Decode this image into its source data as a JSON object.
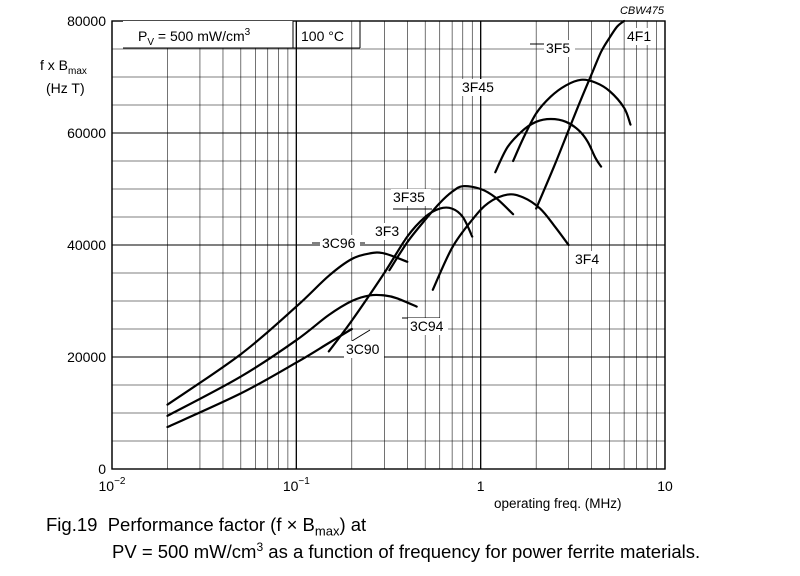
{
  "chart_data": {
    "type": "line",
    "x_scale": "log",
    "figure_id": "CBW475",
    "ylabel": {
      "main": "f x B",
      "sub": "max",
      "unit": "(Hz T)"
    },
    "xlabel": "operating freq. (MHz)",
    "ylim": [
      0,
      80000
    ],
    "xlim": [
      0.01,
      10
    ],
    "y_ticks": [
      0,
      20000,
      40000,
      60000,
      80000
    ],
    "y_tick_labels": [
      "0",
      "20000",
      "40000",
      "60000",
      "80000"
    ],
    "x_tick_labels": [
      {
        "value": 0.01,
        "base": "10",
        "exp": "−2"
      },
      {
        "value": 0.1,
        "base": "10",
        "exp": "−1"
      },
      {
        "value": 1,
        "base": "1",
        "exp": ""
      },
      {
        "value": 10,
        "base": "10",
        "exp": ""
      }
    ],
    "conditions": {
      "power": {
        "prefix": "P",
        "sub": "V",
        "text": " = 500 mW/cm",
        "sup": "3"
      },
      "temperature": "100 °C"
    },
    "grid": true,
    "series": [
      {
        "name": "3C90",
        "x": [
          0.02,
          0.05,
          0.1,
          0.15,
          0.2
        ],
        "y": [
          7500,
          13500,
          19000,
          22500,
          25000
        ]
      },
      {
        "name": "3C94",
        "x": [
          0.02,
          0.05,
          0.1,
          0.15,
          0.2,
          0.25,
          0.3,
          0.35,
          0.45
        ],
        "y": [
          9500,
          16500,
          23000,
          27500,
          30000,
          31000,
          31000,
          30500,
          29000
        ]
      },
      {
        "name": "3C96",
        "x": [
          0.02,
          0.05,
          0.1,
          0.15,
          0.2,
          0.25,
          0.3,
          0.4
        ],
        "y": [
          11500,
          20500,
          29000,
          34500,
          37500,
          38500,
          38500,
          37000
        ]
      },
      {
        "name": "3F3",
        "x": [
          0.15,
          0.2,
          0.3,
          0.4,
          0.5,
          0.6,
          0.7,
          0.8,
          0.9
        ],
        "y": [
          21000,
          26500,
          35000,
          41500,
          45000,
          46500,
          46500,
          45000,
          41500
        ]
      },
      {
        "name": "3F35",
        "x": [
          0.32,
          0.4,
          0.5,
          0.6,
          0.7,
          0.8,
          1.0,
          1.2,
          1.5
        ],
        "y": [
          35500,
          40500,
          44500,
          47500,
          49500,
          50500,
          50000,
          48500,
          45500
        ]
      },
      {
        "name": "3F4",
        "x": [
          0.55,
          0.7,
          0.9,
          1.1,
          1.4,
          1.7,
          2.1,
          2.5,
          3.0
        ],
        "y": [
          32000,
          39500,
          44500,
          47500,
          49000,
          48500,
          46500,
          43500,
          40000
        ]
      },
      {
        "name": "3F45",
        "x": [
          1.2,
          1.4,
          1.7,
          2.0,
          2.4,
          2.9,
          3.4,
          3.8,
          4.2,
          4.5
        ],
        "y": [
          53000,
          57500,
          60500,
          62000,
          62500,
          62000,
          60500,
          58500,
          55500,
          54000
        ]
      },
      {
        "name": "3F5",
        "x": [
          1.5,
          1.7,
          2.0,
          2.4,
          2.9,
          3.5,
          4.2,
          5.0,
          6.0,
          6.5
        ],
        "y": [
          55000,
          59000,
          63500,
          66500,
          68500,
          69500,
          69000,
          67500,
          64500,
          61500
        ]
      },
      {
        "name": "4F1",
        "x": [
          2.0,
          2.5,
          3.0,
          3.5,
          4.0,
          4.5,
          5.0,
          5.5,
          6.0
        ],
        "y": [
          46500,
          54000,
          60500,
          66000,
          70500,
          74500,
          77000,
          79000,
          80000
        ]
      }
    ]
  },
  "caption": {
    "fig": "Fig.19",
    "line1_a": "Performance factor (f × B",
    "line1_sub": "max",
    "line1_b": ") at",
    "line2_a": "PV = 500 mW/cm",
    "line2_sup": "3",
    "line2_b": " as a function of frequency for power ferrite materials."
  }
}
